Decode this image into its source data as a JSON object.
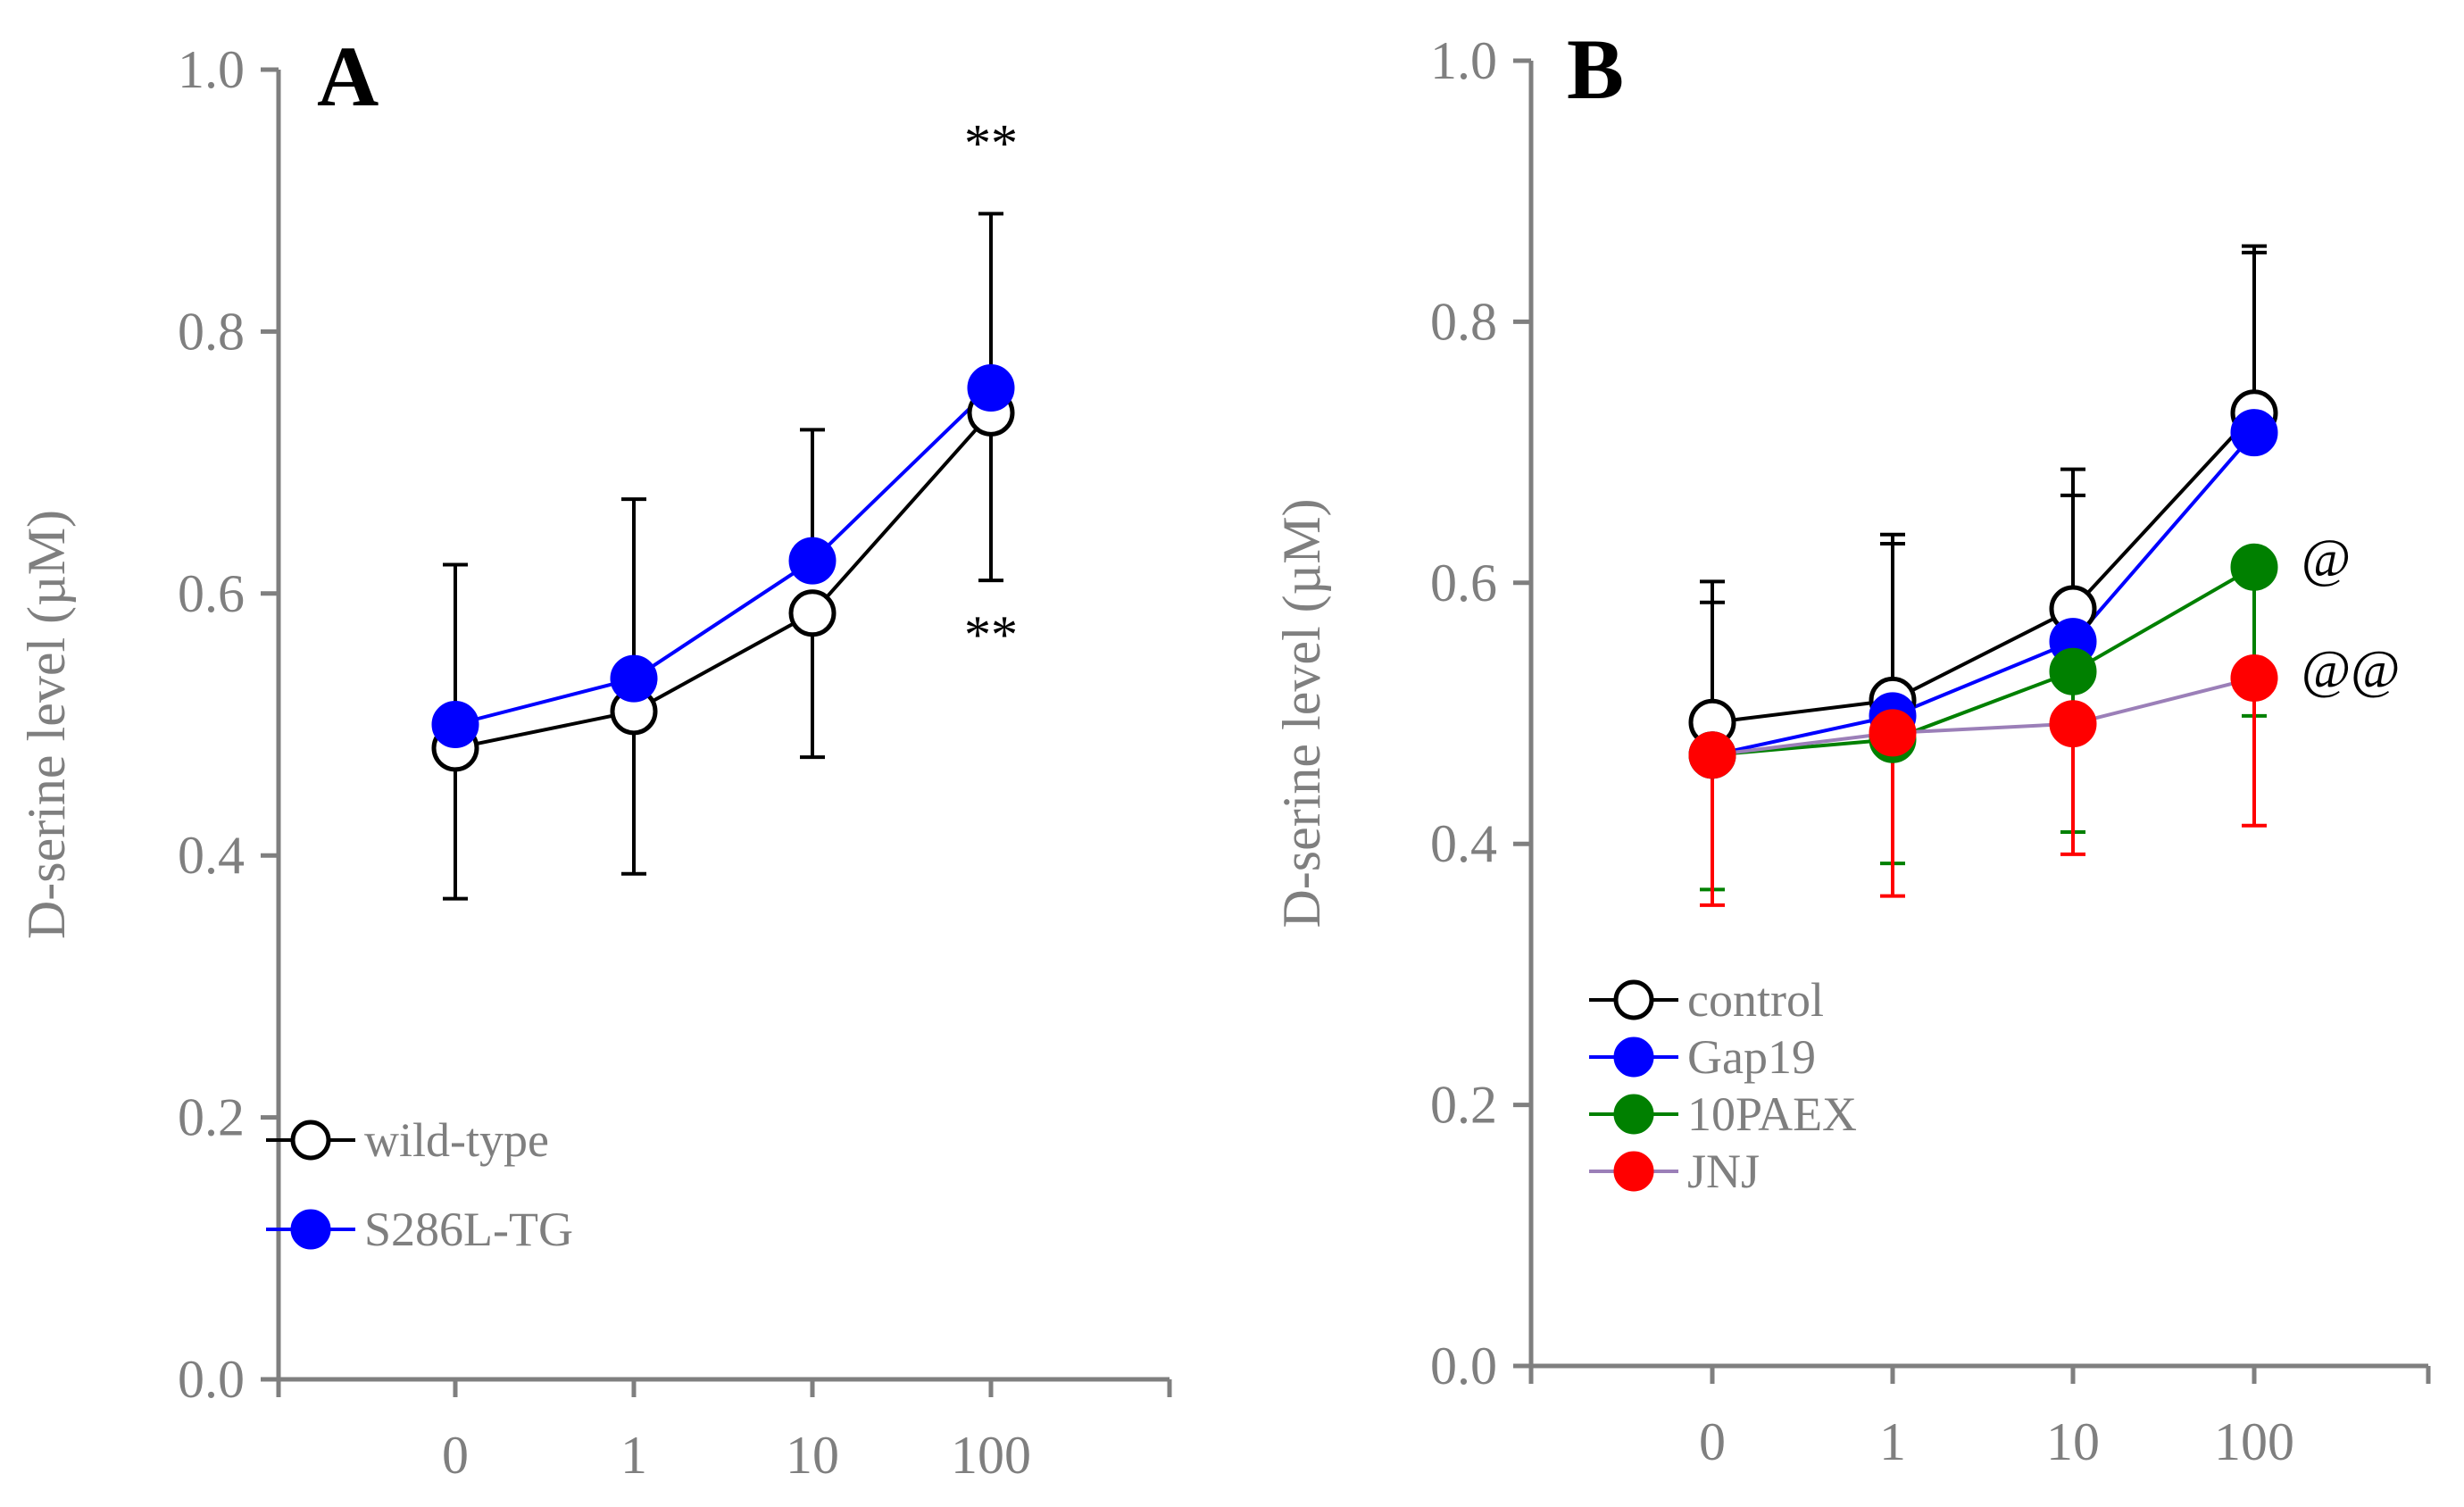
{
  "chart_data": [
    {
      "type": "line",
      "panel_label": "A",
      "ylabel": "D-serine  level (µM)",
      "xlabel": "",
      "categories": [
        "0",
        "1",
        "10",
        "100"
      ],
      "ylim": [
        0.0,
        1.0
      ],
      "yticks": [
        "0.0",
        "0.2",
        "0.4",
        "0.6",
        "0.8",
        "1.0"
      ],
      "legend_position": "lower-left",
      "series": [
        {
          "name": "wild-type",
          "values": [
            0.482,
            0.51,
            0.585,
            0.738
          ],
          "error": [
            0.115,
            0.124,
            0.11,
            0.128
          ],
          "error_direction": "down",
          "line_color": "#000000",
          "marker_fill": "#ffffff",
          "marker_stroke": "#000000",
          "error_color": "#000000"
        },
        {
          "name": "S286L-TG",
          "values": [
            0.5,
            0.535,
            0.625,
            0.757
          ],
          "error": [
            0.122,
            0.137,
            0.1,
            0.133
          ],
          "error_direction": "up",
          "line_color": "#0000ff",
          "marker_fill": "#0000ff",
          "marker_stroke": "#0000ff",
          "error_color": "#000000"
        }
      ],
      "annotations": [
        {
          "text": "**",
          "category": "100",
          "y": 0.93
        },
        {
          "text": "**",
          "category": "100",
          "y": 0.555
        }
      ]
    },
    {
      "type": "line",
      "panel_label": "B",
      "ylabel": "D-serine  level (µM)",
      "xlabel": "",
      "categories": [
        "0",
        "1",
        "10",
        "100"
      ],
      "ylim": [
        0.0,
        1.0
      ],
      "yticks": [
        "0.0",
        "0.2",
        "0.4",
        "0.6",
        "0.8",
        "1.0"
      ],
      "legend_position": "lower-left",
      "series": [
        {
          "name": "control",
          "values": [
            0.493,
            0.51,
            0.58,
            0.73
          ],
          "error": [
            0.108,
            0.127,
            0.107,
            0.128
          ],
          "error_direction": "up",
          "line_color": "#000000",
          "marker_fill": "#ffffff",
          "marker_stroke": "#000000",
          "error_color": "#000000"
        },
        {
          "name": "Gap19",
          "values": [
            0.468,
            0.498,
            0.555,
            0.715
          ],
          "error": [
            0.117,
            0.132,
            0.112,
            0.138
          ],
          "error_direction": "up",
          "line_color": "#0000ff",
          "marker_fill": "#0000ff",
          "marker_stroke": "#0000ff",
          "error_color": "#000000"
        },
        {
          "name": "10PAEX",
          "values": [
            0.468,
            0.48,
            0.532,
            0.612
          ],
          "error": [
            0.103,
            0.095,
            0.123,
            0.114
          ],
          "error_direction": "down",
          "line_color": "#008000",
          "marker_fill": "#008000",
          "marker_stroke": "#008000",
          "error_color": "#008000"
        },
        {
          "name": "JNJ",
          "values": [
            0.468,
            0.485,
            0.492,
            0.527
          ],
          "error": [
            0.115,
            0.125,
            0.1,
            0.113
          ],
          "error_direction": "down",
          "line_color": "#9b7fb8",
          "marker_fill": "#ff0000",
          "marker_stroke": "#ff0000",
          "error_color": "#ff0000"
        }
      ],
      "annotations": [
        {
          "text": "@",
          "category": "100",
          "y": 0.605
        },
        {
          "text": "@@",
          "category": "100",
          "y": 0.52
        }
      ]
    }
  ]
}
